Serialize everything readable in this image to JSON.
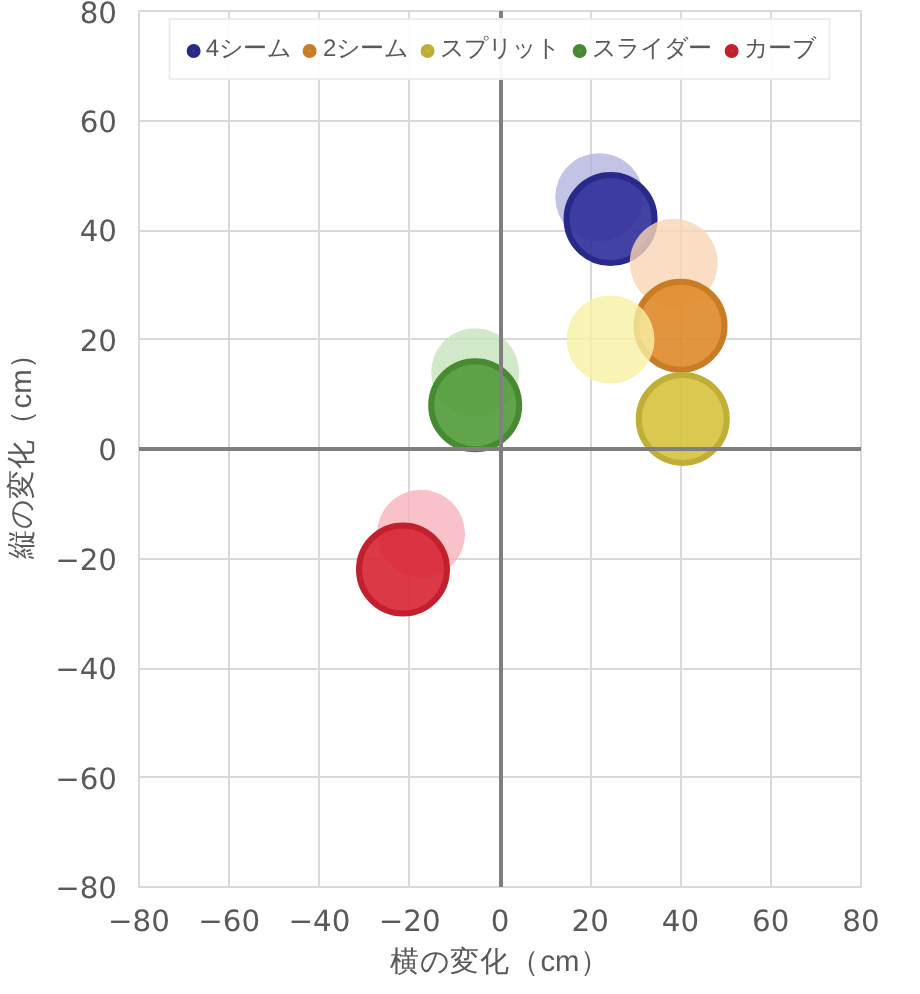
{
  "chart_data": {
    "type": "scatter",
    "xlabel": "横の変化（cm）",
    "ylabel": "縦の変化（cm）",
    "xlim": [
      -80,
      80
    ],
    "ylim": [
      -80,
      80
    ],
    "xticks": [
      -80,
      -60,
      -40,
      -20,
      0,
      20,
      40,
      60,
      80
    ],
    "yticks": [
      -80,
      -60,
      -40,
      -20,
      0,
      20,
      40,
      60,
      80
    ],
    "grid": true,
    "legend": "top",
    "marker": "circle",
    "series": [
      {
        "name": "4シーム",
        "color": "#2e2e9a",
        "x": [
          22,
          24.5
        ],
        "values": [
          46,
          42
        ],
        "colors": [
          "#b4b4e0",
          "#2e2e9a"
        ]
      },
      {
        "name": "2シーム",
        "color": "#e08a28",
        "x": [
          38.5,
          40
        ],
        "values": [
          34,
          22.5
        ],
        "colors": [
          "#f9d6b4",
          "#e08a28"
        ]
      },
      {
        "name": "スプリット",
        "color": "#d6c23e",
        "x": [
          24.5,
          40.5
        ],
        "values": [
          20,
          5.5
        ],
        "colors": [
          "#f8f0a4",
          "#d6c23e"
        ]
      },
      {
        "name": "スライダー",
        "color": "#4f9a38",
        "x": [
          -5.5,
          -5.5
        ],
        "values": [
          14,
          8
        ],
        "colors": [
          "#c6e2bc",
          "#4f9a38"
        ]
      },
      {
        "name": "カーブ",
        "color": "#d82434",
        "x": [
          -17.5,
          -21.5
        ],
        "values": [
          -15.5,
          -22
        ],
        "colors": [
          "#f8b2ba",
          "#d82434"
        ]
      }
    ]
  }
}
